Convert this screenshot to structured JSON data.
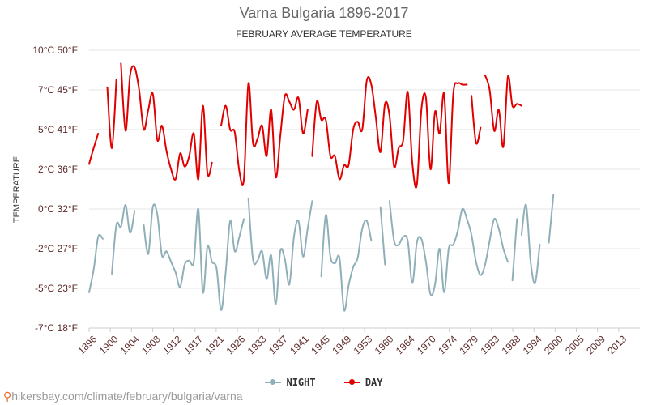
{
  "page": {
    "title": "Varna Bulgaria 1896-2017",
    "subtitle": "FEBRUARY AVERAGE TEMPERATURE",
    "watermark": "hikersbay.com/climate/february/bulgaria/varna",
    "watermark_icon": "location-pin-icon"
  },
  "colors": {
    "night": "#8fb0b8",
    "day": "#e00000",
    "grid": "#e6e6e6",
    "tick": "#5c2a2a"
  },
  "chart_data": {
    "type": "line",
    "title": "Varna Bulgaria 1896-2017",
    "subtitle": "FEBRUARY AVERAGE TEMPERATURE",
    "ylabel": "TEMPERATURE",
    "xlim": [
      1896,
      2017
    ],
    "ylim": [
      -7,
      10
    ],
    "y_ticks": [
      {
        "value": 10,
        "label": "10°C 50°F"
      },
      {
        "value": 7,
        "label": "7°C 45°F"
      },
      {
        "value": 5,
        "label": "5°C 41°F"
      },
      {
        "value": 2,
        "label": "2°C 36°F"
      },
      {
        "value": 0,
        "label": "0°C 32°F"
      },
      {
        "value": -2,
        "label": "-2°C 27°F"
      },
      {
        "value": -5,
        "label": "-5°C 23°F"
      },
      {
        "value": -7,
        "label": "-7°C 18°F"
      }
    ],
    "x_ticks": [
      "1896",
      "1900",
      "1904",
      "1908",
      "1912",
      "1917",
      "1921",
      "1926",
      "1933",
      "1937",
      "1941",
      "1945",
      "1949",
      "1953",
      "1960",
      "1964",
      "1970",
      "1974",
      "1979",
      "1983",
      "1988",
      "1994",
      "2000",
      "2005",
      "2009",
      "2013"
    ],
    "grid": true,
    "legend_position": "bottom",
    "series": [
      {
        "name": "NIGHT",
        "segments": [
          [
            [
              1896,
              -5.2
            ],
            [
              1897,
              -3.6
            ],
            [
              1898,
              -1.4
            ],
            [
              1899,
              -1.5
            ]
          ],
          [
            [
              1901,
              -3.9
            ],
            [
              1902,
              -0.8
            ],
            [
              1903,
              -0.9
            ],
            [
              1904,
              0.2
            ],
            [
              1905,
              -1.2
            ],
            [
              1906,
              -0.1
            ]
          ],
          [
            [
              1908,
              -0.8
            ],
            [
              1909,
              -2.4
            ],
            [
              1910,
              0.1
            ],
            [
              1911,
              -0.3
            ],
            [
              1912,
              -2.5
            ],
            [
              1913,
              -2.2
            ],
            [
              1914,
              -3.0
            ],
            [
              1915,
              -3.8
            ],
            [
              1916,
              -4.9
            ],
            [
              1917,
              -3.2
            ],
            [
              1918,
              -2.9
            ],
            [
              1919,
              -3.0
            ],
            [
              1920,
              0.0
            ],
            [
              1921,
              -5.2
            ],
            [
              1922,
              -1.9
            ],
            [
              1923,
              -3.0
            ],
            [
              1924,
              -3.5
            ],
            [
              1925,
              -6.1
            ],
            [
              1926,
              -3.8
            ],
            [
              1927,
              -0.6
            ],
            [
              1928,
              -2.2
            ],
            [
              1929,
              -1.4
            ],
            [
              1930,
              -0.5
            ]
          ],
          [
            [
              1931,
              0.5
            ],
            [
              1932,
              -2.8
            ],
            [
              1933,
              -2.9
            ],
            [
              1934,
              -2.2
            ],
            [
              1935,
              -4.3
            ],
            [
              1936,
              -2.5
            ],
            [
              1937,
              -5.8
            ],
            [
              1938,
              -2.2
            ],
            [
              1939,
              -2.8
            ],
            [
              1940,
              -4.7
            ],
            [
              1941,
              -1.4
            ],
            [
              1942,
              -0.6
            ],
            [
              1943,
              -2.6
            ],
            [
              1944,
              -1.0
            ],
            [
              1945,
              0.4
            ]
          ],
          [
            [
              1947,
              -4.1
            ],
            [
              1948,
              -0.3
            ],
            [
              1949,
              -2.6
            ],
            [
              1950,
              -3.1
            ],
            [
              1951,
              -2.7
            ],
            [
              1952,
              -6.1
            ],
            [
              1953,
              -4.8
            ],
            [
              1954,
              -3.4
            ],
            [
              1955,
              -2.7
            ],
            [
              1956,
              -1.0
            ],
            [
              1957,
              -0.6
            ],
            [
              1958,
              -1.6
            ]
          ],
          [
            [
              1960,
              0.1
            ],
            [
              1961,
              -3.2
            ]
          ],
          [
            [
              1962,
              0.4
            ],
            [
              1963,
              -1.6
            ],
            [
              1964,
              -1.8
            ],
            [
              1965,
              -1.4
            ],
            [
              1966,
              -1.6
            ],
            [
              1967,
              -4.6
            ],
            [
              1968,
              -1.7
            ],
            [
              1969,
              -1.5
            ],
            [
              1970,
              -3.0
            ],
            [
              1971,
              -5.3
            ],
            [
              1972,
              -4.7
            ],
            [
              1973,
              -2.0
            ],
            [
              1974,
              -5.2
            ],
            [
              1975,
              -2.0
            ],
            [
              1976,
              -1.8
            ],
            [
              1977,
              -1.1
            ],
            [
              1978,
              0.0
            ],
            [
              1979,
              -0.5
            ],
            [
              1980,
              -1.3
            ],
            [
              1981,
              -3.0
            ],
            [
              1982,
              -4.0
            ],
            [
              1983,
              -3.2
            ],
            [
              1984,
              -1.6
            ],
            [
              1985,
              -0.5
            ],
            [
              1986,
              -1.0
            ],
            [
              1987,
              -2.0
            ],
            [
              1988,
              -3.0
            ]
          ],
          [
            [
              1989,
              -4.4
            ],
            [
              1990,
              -0.5
            ]
          ],
          [
            [
              1991,
              -1.3
            ],
            [
              1992,
              0.2
            ],
            [
              1993,
              -3.0
            ],
            [
              1994,
              -4.6
            ],
            [
              1995,
              -1.8
            ]
          ],
          [
            [
              1997,
              -1.7
            ],
            [
              1998,
              0.7
            ]
          ]
        ]
      },
      {
        "name": "DAY",
        "segments": [
          [
            [
              1896,
              2.4
            ],
            [
              1897,
              3.6
            ],
            [
              1898,
              4.7
            ]
          ],
          [
            [
              1900,
              7.2
            ],
            [
              1901,
              3.6
            ],
            [
              1902,
              7.8
            ]
          ],
          [
            [
              1903,
              9.0
            ],
            [
              1904,
              4.9
            ],
            [
              1905,
              8.1
            ],
            [
              1906,
              8.7
            ],
            [
              1907,
              7.0
            ],
            [
              1908,
              5.0
            ],
            [
              1909,
              6.0
            ],
            [
              1910,
              6.8
            ],
            [
              1911,
              4.2
            ],
            [
              1912,
              5.2
            ],
            [
              1913,
              3.4
            ],
            [
              1914,
              2.0
            ],
            [
              1915,
              1.5
            ],
            [
              1916,
              3.2
            ],
            [
              1917,
              2.2
            ],
            [
              1918,
              3.0
            ],
            [
              1919,
              4.7
            ],
            [
              1920,
              1.5
            ],
            [
              1921,
              6.2
            ],
            [
              1922,
              1.8
            ],
            [
              1923,
              2.5
            ]
          ],
          [
            [
              1925,
              5.2
            ],
            [
              1926,
              6.2
            ],
            [
              1927,
              5.0
            ],
            [
              1928,
              4.8
            ],
            [
              1929,
              1.9
            ],
            [
              1930,
              1.5
            ],
            [
              1931,
              7.5
            ],
            [
              1932,
              4.0
            ],
            [
              1933,
              4.3
            ],
            [
              1934,
              5.2
            ],
            [
              1935,
              3.0
            ],
            [
              1936,
              6.0
            ],
            [
              1937,
              1.6
            ],
            [
              1938,
              4.5
            ],
            [
              1939,
              6.7
            ],
            [
              1940,
              6.4
            ],
            [
              1941,
              6.0
            ],
            [
              1942,
              6.6
            ],
            [
              1943,
              4.7
            ],
            [
              1944,
              6.0
            ]
          ],
          [
            [
              1945,
              3.0
            ],
            [
              1946,
              6.4
            ],
            [
              1947,
              5.5
            ],
            [
              1948,
              5.5
            ],
            [
              1949,
              3.0
            ],
            [
              1950,
              3.0
            ],
            [
              1951,
              1.5
            ],
            [
              1952,
              2.3
            ],
            [
              1953,
              2.3
            ],
            [
              1954,
              5.0
            ],
            [
              1955,
              5.4
            ],
            [
              1956,
              5.0
            ],
            [
              1957,
              7.7
            ],
            [
              1958,
              7.4
            ],
            [
              1959,
              5.6
            ],
            [
              1960,
              3.3
            ],
            [
              1961,
              6.3
            ],
            [
              1962,
              5.7
            ],
            [
              1963,
              2.2
            ],
            [
              1964,
              3.6
            ],
            [
              1965,
              4.2
            ],
            [
              1966,
              6.9
            ],
            [
              1967,
              2.5
            ],
            [
              1968,
              1.2
            ],
            [
              1969,
              6.0
            ],
            [
              1970,
              6.6
            ],
            [
              1971,
              2.0
            ],
            [
              1972,
              5.9
            ],
            [
              1973,
              4.7
            ],
            [
              1974,
              6.8
            ],
            [
              1975,
              1.3
            ],
            [
              1976,
              6.8
            ],
            [
              1977,
              7.5
            ],
            [
              1978,
              7.4
            ],
            [
              1979,
              7.4
            ]
          ],
          [
            [
              1980,
              6.7
            ],
            [
              1981,
              4.0
            ],
            [
              1982,
              5.1
            ]
          ],
          [
            [
              1983,
              8.1
            ],
            [
              1984,
              7.0
            ],
            [
              1985,
              4.9
            ],
            [
              1986,
              6.0
            ],
            [
              1987,
              3.7
            ],
            [
              1988,
              8.0
            ],
            [
              1989,
              6.2
            ],
            [
              1990,
              6.3
            ],
            [
              1991,
              6.2
            ]
          ]
        ]
      }
    ]
  }
}
